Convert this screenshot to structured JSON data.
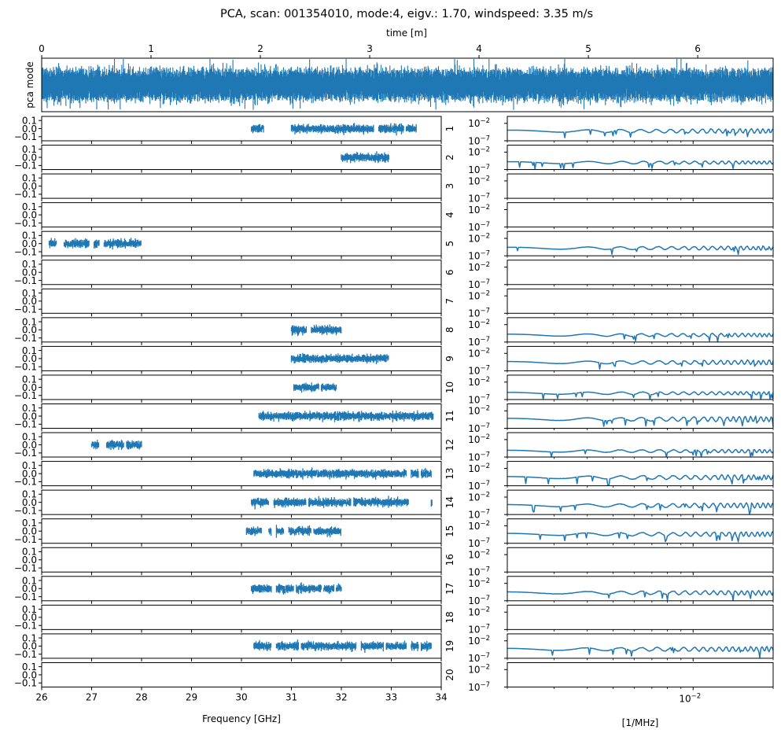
{
  "chart_data": [
    {
      "id": "timeseries",
      "type": "line",
      "title": "PCA, scan: 001354010, mode:4, eigv.: 1.70, windspeed: 3.35 m/s",
      "xlabel": "time [m]",
      "ylabel": "pca mode",
      "xlim": [
        0,
        6.69
      ],
      "x_ticks": [
        "0",
        "1",
        "2",
        "3",
        "4",
        "5",
        "6"
      ],
      "x_tick_values": [
        0,
        1,
        2,
        3,
        4,
        5,
        6
      ],
      "y_ticks_visible": false,
      "description": "dense noise-like signal centered at 0, roughly constant amplitude with occasional spikes",
      "color": "#1f77b4"
    },
    {
      "id": "frequency-panels",
      "type": "scatter",
      "xlabel": "Frequency [GHz]",
      "xlim": [
        26,
        34
      ],
      "ylim": [
        -0.15,
        0.15
      ],
      "x_ticks": [
        "26",
        "27",
        "28",
        "29",
        "30",
        "31",
        "32",
        "33",
        "34"
      ],
      "x_tick_values": [
        26,
        27,
        28,
        29,
        30,
        31,
        32,
        33,
        34
      ],
      "y_ticks": [
        "0.1",
        "0.0",
        "−0.1"
      ],
      "y_tick_values": [
        0.1,
        0.0,
        -0.1
      ],
      "color": "#1f77b4",
      "panels": [
        {
          "feed": "1",
          "segments": [
            [
              30.2,
              30.45
            ],
            [
              31.0,
              32.65
            ],
            [
              32.75,
              33.25
            ],
            [
              33.3,
              33.5
            ]
          ]
        },
        {
          "feed": "2",
          "segments": [
            [
              32.0,
              32.95
            ]
          ]
        },
        {
          "feed": "3",
          "segments": []
        },
        {
          "feed": "4",
          "segments": []
        },
        {
          "feed": "5",
          "segments": [
            [
              26.15,
              26.3
            ],
            [
              26.45,
              26.95
            ],
            [
              27.05,
              27.15
            ],
            [
              27.25,
              28.0
            ]
          ]
        },
        {
          "feed": "6",
          "segments": []
        },
        {
          "feed": "7",
          "segments": []
        },
        {
          "feed": "8",
          "segments": [
            [
              31.0,
              31.3
            ],
            [
              31.4,
              32.0
            ]
          ]
        },
        {
          "feed": "9",
          "segments": [
            [
              31.0,
              32.95
            ]
          ]
        },
        {
          "feed": "10",
          "segments": [
            [
              31.05,
              31.55
            ],
            [
              31.6,
              31.9
            ]
          ]
        },
        {
          "feed": "11",
          "segments": [
            [
              30.35,
              33.85
            ]
          ]
        },
        {
          "feed": "12",
          "segments": [
            [
              27.0,
              27.15
            ],
            [
              27.3,
              27.65
            ],
            [
              27.7,
              28.0
            ]
          ]
        },
        {
          "feed": "13",
          "segments": [
            [
              30.25,
              33.3
            ],
            [
              33.4,
              33.55
            ],
            [
              33.6,
              33.8
            ]
          ]
        },
        {
          "feed": "14",
          "segments": [
            [
              30.2,
              30.55
            ],
            [
              30.65,
              31.3
            ],
            [
              31.35,
              32.2
            ],
            [
              32.25,
              33.35
            ],
            [
              33.8,
              33.82
            ]
          ]
        },
        {
          "feed": "15",
          "segments": [
            [
              30.1,
              30.4
            ],
            [
              30.55,
              30.6
            ],
            [
              30.7,
              30.85
            ],
            [
              30.95,
              31.4
            ],
            [
              31.45,
              32.0
            ]
          ]
        },
        {
          "feed": "16",
          "segments": []
        },
        {
          "feed": "17",
          "segments": [
            [
              30.2,
              30.6
            ],
            [
              30.7,
              31.05
            ],
            [
              31.1,
              31.6
            ],
            [
              31.65,
              31.85
            ],
            [
              31.9,
              32.0
            ]
          ]
        },
        {
          "feed": "18",
          "segments": []
        },
        {
          "feed": "19",
          "segments": [
            [
              30.25,
              30.6
            ],
            [
              30.7,
              31.15
            ],
            [
              31.2,
              32.3
            ],
            [
              32.4,
              32.85
            ],
            [
              32.9,
              33.3
            ],
            [
              33.4,
              33.55
            ],
            [
              33.6,
              33.8
            ]
          ]
        },
        {
          "feed": "20",
          "segments": []
        }
      ]
    },
    {
      "id": "power-spectrum-panels",
      "type": "line",
      "xlabel": "[1/MHz]",
      "xscale": "log",
      "yscale": "log",
      "xlim": [
        0.002,
        0.02
      ],
      "ylim": [
        1e-07,
        1.0
      ],
      "x_major_ticks": [
        {
          "value": 0.01,
          "label_base": "10",
          "label_exp": "−2"
        }
      ],
      "x_minor_tick_values": [
        0.002,
        0.003,
        0.004,
        0.005,
        0.006,
        0.007,
        0.008,
        0.009,
        0.02
      ],
      "y_ticks": [
        {
          "value": 0.01,
          "label_base": "10",
          "label_exp": "−2"
        },
        {
          "value": 1e-07,
          "label_base": "10",
          "label_exp": "−7"
        }
      ],
      "color": "#1f77b4",
      "panels": [
        {
          "feed": "1",
          "has_data": true,
          "base_log": -4.2,
          "roughness": 0.55,
          "seed": 11
        },
        {
          "feed": "2",
          "has_data": true,
          "base_log": -5.0,
          "roughness": 0.3,
          "seed": 22
        },
        {
          "feed": "3",
          "has_data": false
        },
        {
          "feed": "4",
          "has_data": false
        },
        {
          "feed": "5",
          "has_data": true,
          "base_log": -4.8,
          "roughness": 0.45,
          "seed": 33
        },
        {
          "feed": "6",
          "has_data": false
        },
        {
          "feed": "7",
          "has_data": false
        },
        {
          "feed": "8",
          "has_data": true,
          "base_log": -5.0,
          "roughness": 0.35,
          "seed": 44
        },
        {
          "feed": "9",
          "has_data": true,
          "base_log": -4.6,
          "roughness": 0.55,
          "seed": 55
        },
        {
          "feed": "10",
          "has_data": true,
          "base_log": -5.2,
          "roughness": 0.3,
          "seed": 66
        },
        {
          "feed": "11",
          "has_data": true,
          "base_log": -4.4,
          "roughness": 0.7,
          "seed": 77
        },
        {
          "feed": "12",
          "has_data": true,
          "base_log": -5.3,
          "roughness": 0.35,
          "seed": 88
        },
        {
          "feed": "13",
          "has_data": true,
          "base_log": -4.6,
          "roughness": 0.65,
          "seed": 99
        },
        {
          "feed": "14",
          "has_data": true,
          "base_log": -4.4,
          "roughness": 0.65,
          "seed": 111
        },
        {
          "feed": "15",
          "has_data": true,
          "base_log": -4.4,
          "roughness": 0.55,
          "seed": 122
        },
        {
          "feed": "16",
          "has_data": false
        },
        {
          "feed": "17",
          "has_data": true,
          "base_log": -4.7,
          "roughness": 0.55,
          "seed": 133
        },
        {
          "feed": "18",
          "has_data": false
        },
        {
          "feed": "19",
          "has_data": true,
          "base_log": -4.4,
          "roughness": 0.6,
          "seed": 144
        },
        {
          "feed": "20",
          "has_data": false
        }
      ]
    }
  ]
}
